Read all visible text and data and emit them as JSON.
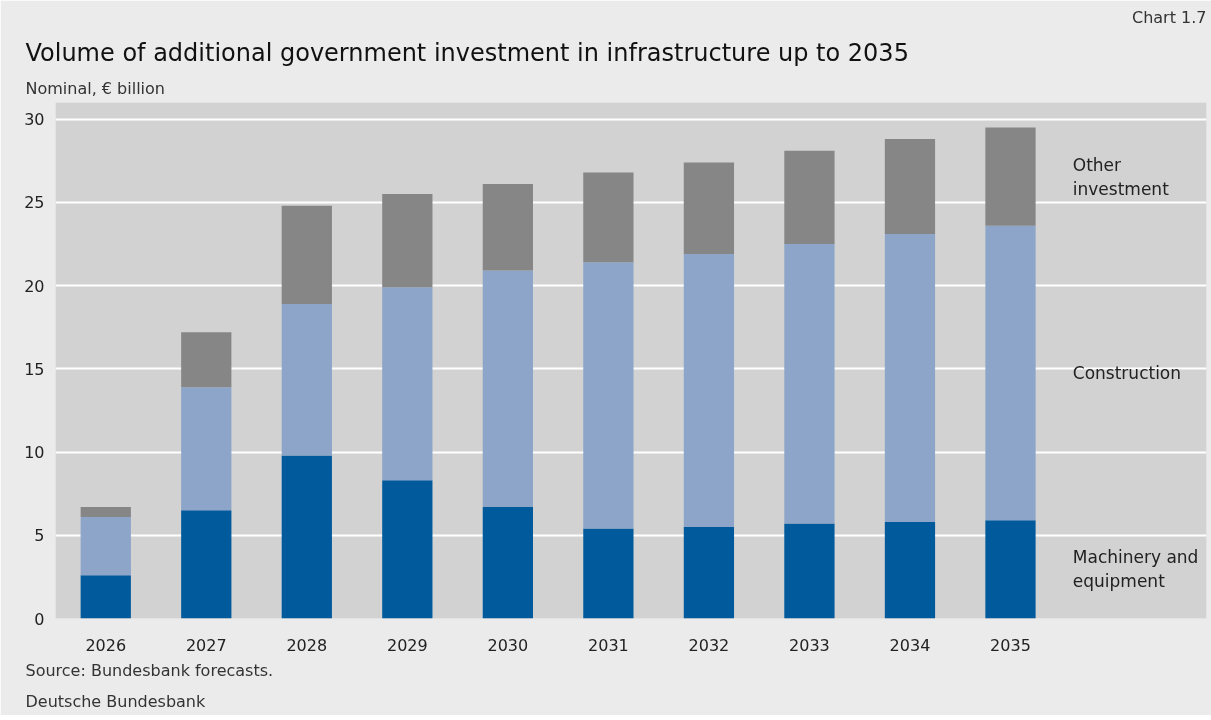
{
  "chart_data": {
    "type": "bar",
    "title": "Volume of additional government investment in infrastructure up to 2035",
    "subtitle": "Nominal, € billion",
    "categories": [
      "2026",
      "2027",
      "2028",
      "2029",
      "2030",
      "2031",
      "2032",
      "2033",
      "2034",
      "2035"
    ],
    "stacked": true,
    "series": [
      {
        "name": "Machinery and equipment",
        "color": "#005a9c",
        "values": [
          2.6,
          6.5,
          9.8,
          8.3,
          6.7,
          5.4,
          5.5,
          5.7,
          5.8,
          5.9
        ]
      },
      {
        "name": "Construction",
        "color": "#8ca5c8",
        "values": [
          3.5,
          7.4,
          9.1,
          11.6,
          14.2,
          16.0,
          16.4,
          16.8,
          17.3,
          17.7
        ]
      },
      {
        "name": "Other investment",
        "color": "#868686",
        "values": [
          0.6,
          3.3,
          5.9,
          5.6,
          5.2,
          5.4,
          5.5,
          5.6,
          5.7,
          5.9
        ]
      }
    ],
    "ylim": [
      0,
      31
    ],
    "yticks": [
      0,
      5,
      10,
      15,
      20,
      25,
      30
    ],
    "grid": "y",
    "annotations": [
      "Chart 1.7",
      "Source: Bundesbank forecasts.",
      "Deutsche Bundesbank"
    ]
  }
}
